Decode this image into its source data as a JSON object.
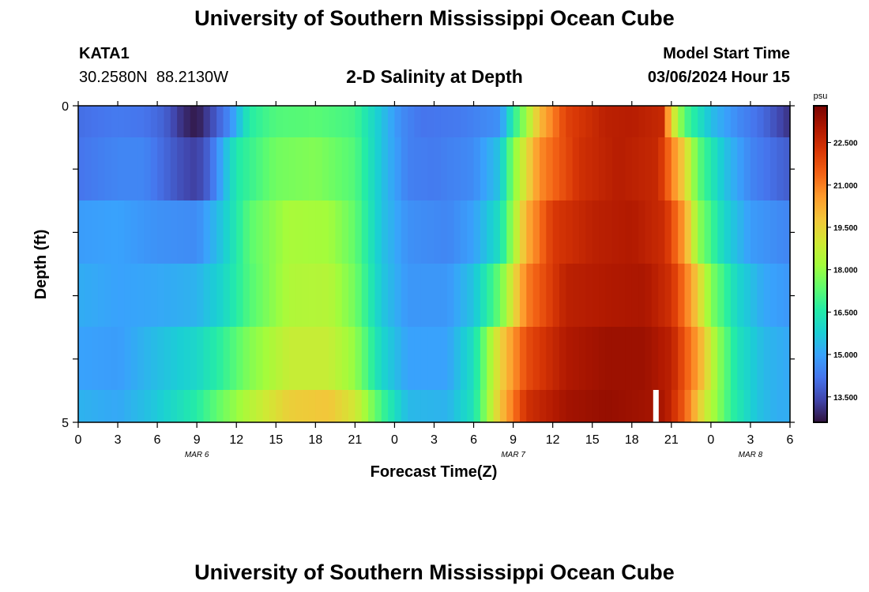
{
  "header": {
    "title": "University of Southern Mississippi Ocean Cube",
    "station_id": "KATA1",
    "coords": "30.2580N  88.2130W",
    "plot_title": "2-D Salinity at Depth",
    "model_start_label": "Model Start Time",
    "model_start_value": "03/06/2024 Hour 15"
  },
  "footer": {
    "title": "University of Southern Mississippi Ocean Cube"
  },
  "chart_data": {
    "type": "heatmap",
    "xlabel": "Forecast Time(Z)",
    "ylabel": "Depth (ft)",
    "x_ticks": [
      "0",
      "3",
      "6",
      "9",
      "12",
      "15",
      "18",
      "21",
      "0",
      "3",
      "6",
      "9",
      "12",
      "15",
      "18",
      "21",
      "0",
      "3",
      "6"
    ],
    "date_labels": [
      {
        "label": "MAR 6",
        "at_hour": 9
      },
      {
        "label": "MAR 7",
        "at_hour": 33
      },
      {
        "label": "MAR 8",
        "at_hour": 51
      }
    ],
    "y_ticks": [
      "0",
      "5"
    ],
    "ylim": [
      0,
      5
    ],
    "xlim_hours": [
      0,
      54
    ],
    "colorbar": {
      "unit": "psu",
      "ticks": [
        "22.500",
        "21.000",
        "19.500",
        "18.000",
        "16.500",
        "15.000",
        "13.500"
      ],
      "min": 12.6,
      "max": 23.8,
      "colors": [
        "#30123b",
        "#4145ab",
        "#4675ed",
        "#39a2fc",
        "#1bcfd4",
        "#24eca6",
        "#61fc6c",
        "#a4fc3b",
        "#d1e834",
        "#f3c63a",
        "#fe9b2d",
        "#f36315",
        "#d93806",
        "#b11901",
        "#7a0402"
      ]
    },
    "depth_layers": [
      {
        "depth": "0-0.5",
        "keys": [
          [
            0,
            14.1
          ],
          [
            3,
            14.3
          ],
          [
            5,
            14.2
          ],
          [
            6.5,
            13.9
          ],
          [
            8,
            13.0
          ],
          [
            9,
            12.7
          ],
          [
            10,
            13.4
          ],
          [
            11.5,
            14.6
          ],
          [
            13,
            16.6
          ],
          [
            15,
            17.2
          ],
          [
            18,
            17.3
          ],
          [
            21,
            17.0
          ],
          [
            23,
            15.6
          ],
          [
            24.5,
            14.6
          ],
          [
            26,
            14.2
          ],
          [
            29,
            14.3
          ],
          [
            32,
            14.7
          ],
          [
            33,
            16.6
          ],
          [
            34,
            18.2
          ],
          [
            35,
            20.0
          ],
          [
            37,
            22.0
          ],
          [
            40,
            22.8
          ],
          [
            42,
            22.9
          ],
          [
            44.3,
            22.6
          ],
          [
            45,
            19.5
          ],
          [
            46,
            17.2
          ],
          [
            48,
            15.5
          ],
          [
            50,
            14.6
          ],
          [
            52,
            14.0
          ],
          [
            53.5,
            13.3
          ],
          [
            54,
            13.1
          ]
        ]
      },
      {
        "depth": "0.5-1.5",
        "keys": [
          [
            0,
            14.2
          ],
          [
            3,
            14.5
          ],
          [
            5,
            14.5
          ],
          [
            8,
            13.5
          ],
          [
            9,
            13.3
          ],
          [
            10,
            14.0
          ],
          [
            12,
            16.5
          ],
          [
            15,
            17.6
          ],
          [
            18,
            17.8
          ],
          [
            21,
            17.2
          ],
          [
            23,
            15.6
          ],
          [
            25,
            14.4
          ],
          [
            27,
            14.3
          ],
          [
            30,
            14.6
          ],
          [
            32,
            15.6
          ],
          [
            33,
            17.8
          ],
          [
            35,
            20.8
          ],
          [
            38,
            22.4
          ],
          [
            41,
            22.9
          ],
          [
            44,
            22.6
          ],
          [
            46,
            19.5
          ],
          [
            47,
            17.4
          ],
          [
            49,
            15.6
          ],
          [
            51,
            14.5
          ],
          [
            53,
            14.0
          ],
          [
            54,
            13.8
          ]
        ]
      },
      {
        "depth": "1.5-2.5",
        "keys": [
          [
            0,
            14.9
          ],
          [
            3,
            15.0
          ],
          [
            6,
            14.7
          ],
          [
            9,
            14.6
          ],
          [
            11,
            15.7
          ],
          [
            13,
            17.3
          ],
          [
            16,
            18.3
          ],
          [
            19,
            18.2
          ],
          [
            21,
            17.4
          ],
          [
            23,
            15.6
          ],
          [
            25,
            14.7
          ],
          [
            28,
            14.5
          ],
          [
            30,
            15.0
          ],
          [
            32,
            16.2
          ],
          [
            34,
            20.2
          ],
          [
            36,
            22.2
          ],
          [
            39,
            22.8
          ],
          [
            42,
            23.0
          ],
          [
            44.5,
            22.5
          ],
          [
            46,
            20.5
          ],
          [
            47,
            18.0
          ],
          [
            49,
            16.0
          ],
          [
            51,
            14.9
          ],
          [
            53,
            14.6
          ],
          [
            54,
            14.5
          ]
        ]
      },
      {
        "depth": "2.5-3.5",
        "keys": [
          [
            0,
            15.2
          ],
          [
            3,
            15.0
          ],
          [
            6,
            15.1
          ],
          [
            9,
            15.3
          ],
          [
            11,
            16.0
          ],
          [
            13,
            17.2
          ],
          [
            16,
            18.4
          ],
          [
            19,
            18.5
          ],
          [
            21,
            17.6
          ],
          [
            23,
            15.7
          ],
          [
            25,
            14.8
          ],
          [
            28,
            14.8
          ],
          [
            30,
            15.6
          ],
          [
            32,
            17.5
          ],
          [
            34,
            21.0
          ],
          [
            37,
            22.8
          ],
          [
            40,
            23.0
          ],
          [
            43,
            23.1
          ],
          [
            45,
            22.4
          ],
          [
            46.5,
            20.5
          ],
          [
            48,
            17.8
          ],
          [
            50,
            16.0
          ],
          [
            52,
            15.1
          ],
          [
            54,
            14.8
          ]
        ]
      },
      {
        "depth": "3.5-4.5",
        "keys": [
          [
            0,
            15.0
          ],
          [
            3,
            14.9
          ],
          [
            6,
            15.5
          ],
          [
            9,
            16.0
          ],
          [
            11,
            16.8
          ],
          [
            13,
            17.8
          ],
          [
            16,
            18.8
          ],
          [
            19,
            18.8
          ],
          [
            21,
            18.0
          ],
          [
            23,
            16.0
          ],
          [
            25,
            15.0
          ],
          [
            28,
            15.0
          ],
          [
            30,
            16.2
          ],
          [
            32,
            19.5
          ],
          [
            34,
            21.8
          ],
          [
            37,
            23.0
          ],
          [
            40,
            23.3
          ],
          [
            43,
            23.3
          ],
          [
            45,
            22.8
          ],
          [
            47,
            20.5
          ],
          [
            48.5,
            18.0
          ],
          [
            50,
            16.3
          ],
          [
            52,
            15.4
          ],
          [
            54,
            15.1
          ]
        ]
      },
      {
        "depth": "4.5-5",
        "keys": [
          [
            0,
            15.3
          ],
          [
            3,
            15.1
          ],
          [
            6,
            15.7
          ],
          [
            9,
            16.6
          ],
          [
            11,
            17.6
          ],
          [
            13,
            18.5
          ],
          [
            16,
            19.6
          ],
          [
            19,
            19.8
          ],
          [
            21,
            19.0
          ],
          [
            23,
            17.0
          ],
          [
            25,
            15.4
          ],
          [
            28,
            15.3
          ],
          [
            30,
            16.3
          ],
          [
            32,
            19.8
          ],
          [
            34,
            22.4
          ],
          [
            37,
            23.2
          ],
          [
            40,
            23.4
          ],
          [
            42,
            23.3
          ],
          [
            44.5,
            23.1
          ],
          [
            46,
            21.5
          ],
          [
            47.5,
            19.0
          ],
          [
            49.5,
            16.8
          ],
          [
            51.5,
            15.6
          ],
          [
            53,
            15.2
          ],
          [
            54,
            15.2
          ]
        ]
      }
    ],
    "missing_marks": [
      {
        "depth_layer": 5,
        "hour": 43.8
      }
    ]
  }
}
